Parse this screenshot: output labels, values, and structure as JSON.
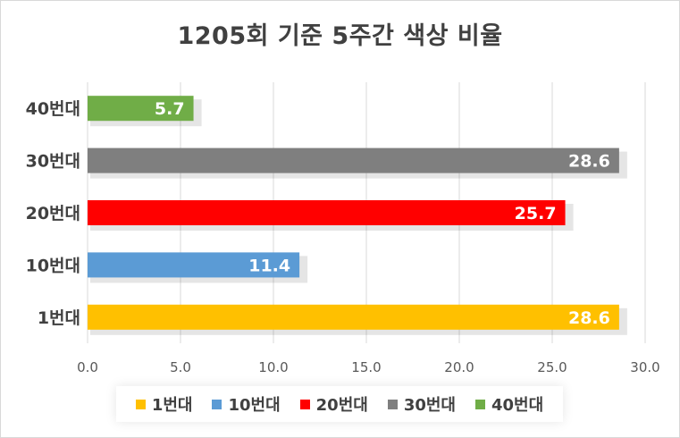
{
  "chart_data": {
    "type": "bar",
    "orientation": "horizontal",
    "title": "1205회 기준 5주간 색상 비율",
    "categories": [
      "1번대",
      "10번대",
      "20번대",
      "30번대",
      "40번대"
    ],
    "values": [
      28.6,
      11.4,
      25.7,
      28.6,
      5.7
    ],
    "colors": [
      "#ffc000",
      "#5b9bd5",
      "#ff0000",
      "#7f7f7f",
      "#70ad47"
    ],
    "xlim": [
      0,
      30
    ],
    "xticks": [
      "0.0",
      "5.0",
      "10.0",
      "15.0",
      "20.0",
      "25.0",
      "30.0"
    ],
    "grid": true,
    "legend_position": "bottom",
    "data_labels": [
      "28.6",
      "11.4",
      "25.7",
      "28.6",
      "5.7"
    ]
  }
}
